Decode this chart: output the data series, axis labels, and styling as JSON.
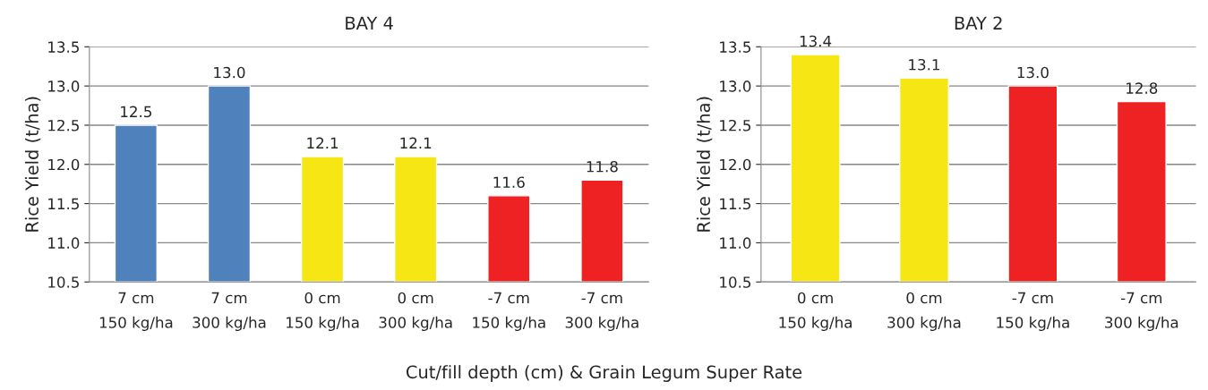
{
  "chart_data": [
    {
      "type": "bar",
      "title": "BAY 4",
      "ylabel": "Rice Yield (t/ha)",
      "xlabel": "Cut/fill depth (cm) & Grain Legum Super Rate",
      "categories": [
        "7 cm\n150 kg/ha",
        "7 cm\n300 kg/ha",
        "0 cm\n150 kg/ha",
        "0 cm\n300 kg/ha",
        "-7 cm\n150 kg/ha",
        "-7 cm\n300 kg/ha"
      ],
      "values": [
        12.5,
        13.0,
        12.1,
        12.1,
        11.6,
        11.8
      ],
      "value_labels": [
        "12.5",
        "13.0",
        "12.1",
        "12.1",
        "11.6",
        "11.8"
      ],
      "colors": [
        "#4f81bd",
        "#4f81bd",
        "#f5e614",
        "#f5e614",
        "#ee2222",
        "#ee2222"
      ],
      "ylim": [
        10.5,
        13.5
      ],
      "yticks": [
        {
          "value": 10.5,
          "label": "10.5"
        },
        {
          "value": 11.0,
          "label": "11.0"
        },
        {
          "value": 11.5,
          "label": "11.5"
        },
        {
          "value": 12.0,
          "label": "12.0"
        },
        {
          "value": 12.5,
          "label": "12.5"
        },
        {
          "value": 13.0,
          "label": "13.0"
        },
        {
          "value": 13.5,
          "label": "13.5"
        }
      ],
      "grid": "y",
      "legend": false
    },
    {
      "type": "bar",
      "title": "BAY 2",
      "ylabel": "Rice Yield (t/ha)",
      "categories": [
        "0 cm\n150 kg/ha",
        "0 cm\n300 kg/ha",
        "-7 cm\n150 kg/ha",
        "-7 cm\n300 kg/ha"
      ],
      "values": [
        13.4,
        13.1,
        13.0,
        12.8
      ],
      "value_labels": [
        "13.4",
        "13.1",
        "13.0",
        "12.8"
      ],
      "colors": [
        "#f5e614",
        "#f5e614",
        "#ee2222",
        "#ee2222"
      ],
      "ylim": [
        10.5,
        13.5
      ],
      "yticks": [
        {
          "value": 10.5,
          "label": "10.5"
        },
        {
          "value": 11.0,
          "label": "11.0"
        },
        {
          "value": 11.5,
          "label": "11.5"
        },
        {
          "value": 12.0,
          "label": "12.0"
        },
        {
          "value": 12.5,
          "label": "12.5"
        },
        {
          "value": 13.0,
          "label": "13.0"
        },
        {
          "value": 13.5,
          "label": "13.5"
        }
      ],
      "grid": "y",
      "legend": false
    }
  ]
}
